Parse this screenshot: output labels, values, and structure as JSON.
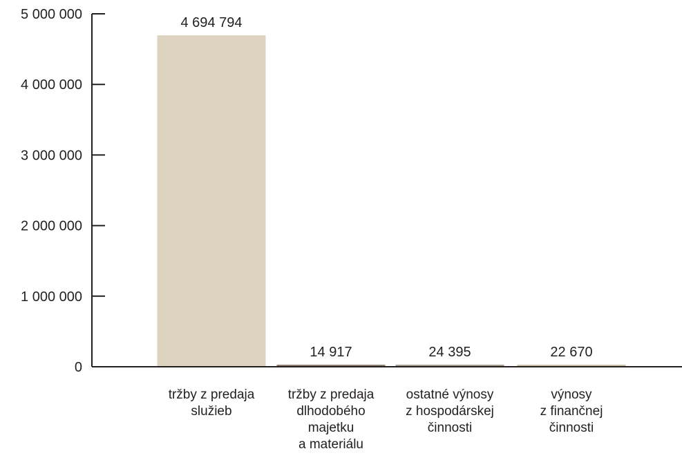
{
  "chart_data": {
    "type": "bar",
    "categories": [
      [
        "tržby z predaja",
        "služieb"
      ],
      [
        "tržby z predaja",
        "dlhodobého",
        "majetku",
        "a materiálu"
      ],
      [
        "ostatné výnosy",
        "z hospodárskej",
        "činnosti"
      ],
      [
        "výnosy",
        "z finančnej",
        "činnosti"
      ]
    ],
    "values": [
      4694794,
      14917,
      24395,
      22670
    ],
    "data_labels": [
      "4 694 794",
      "14 917",
      "24 395",
      "22 670"
    ],
    "bar_colors": [
      "#ddd3be",
      "#8a7d6f",
      "#a29a8c",
      "#c9bea6"
    ],
    "ylim": [
      0,
      5000000
    ],
    "yticks": [
      0,
      1000000,
      2000000,
      3000000,
      4000000,
      5000000
    ],
    "ytick_labels": [
      "0",
      "1 000 000",
      "2 000 000",
      "3 000 000",
      "4 000 000",
      "5 000 000"
    ],
    "grid": false,
    "axis_color": "#231f20"
  }
}
